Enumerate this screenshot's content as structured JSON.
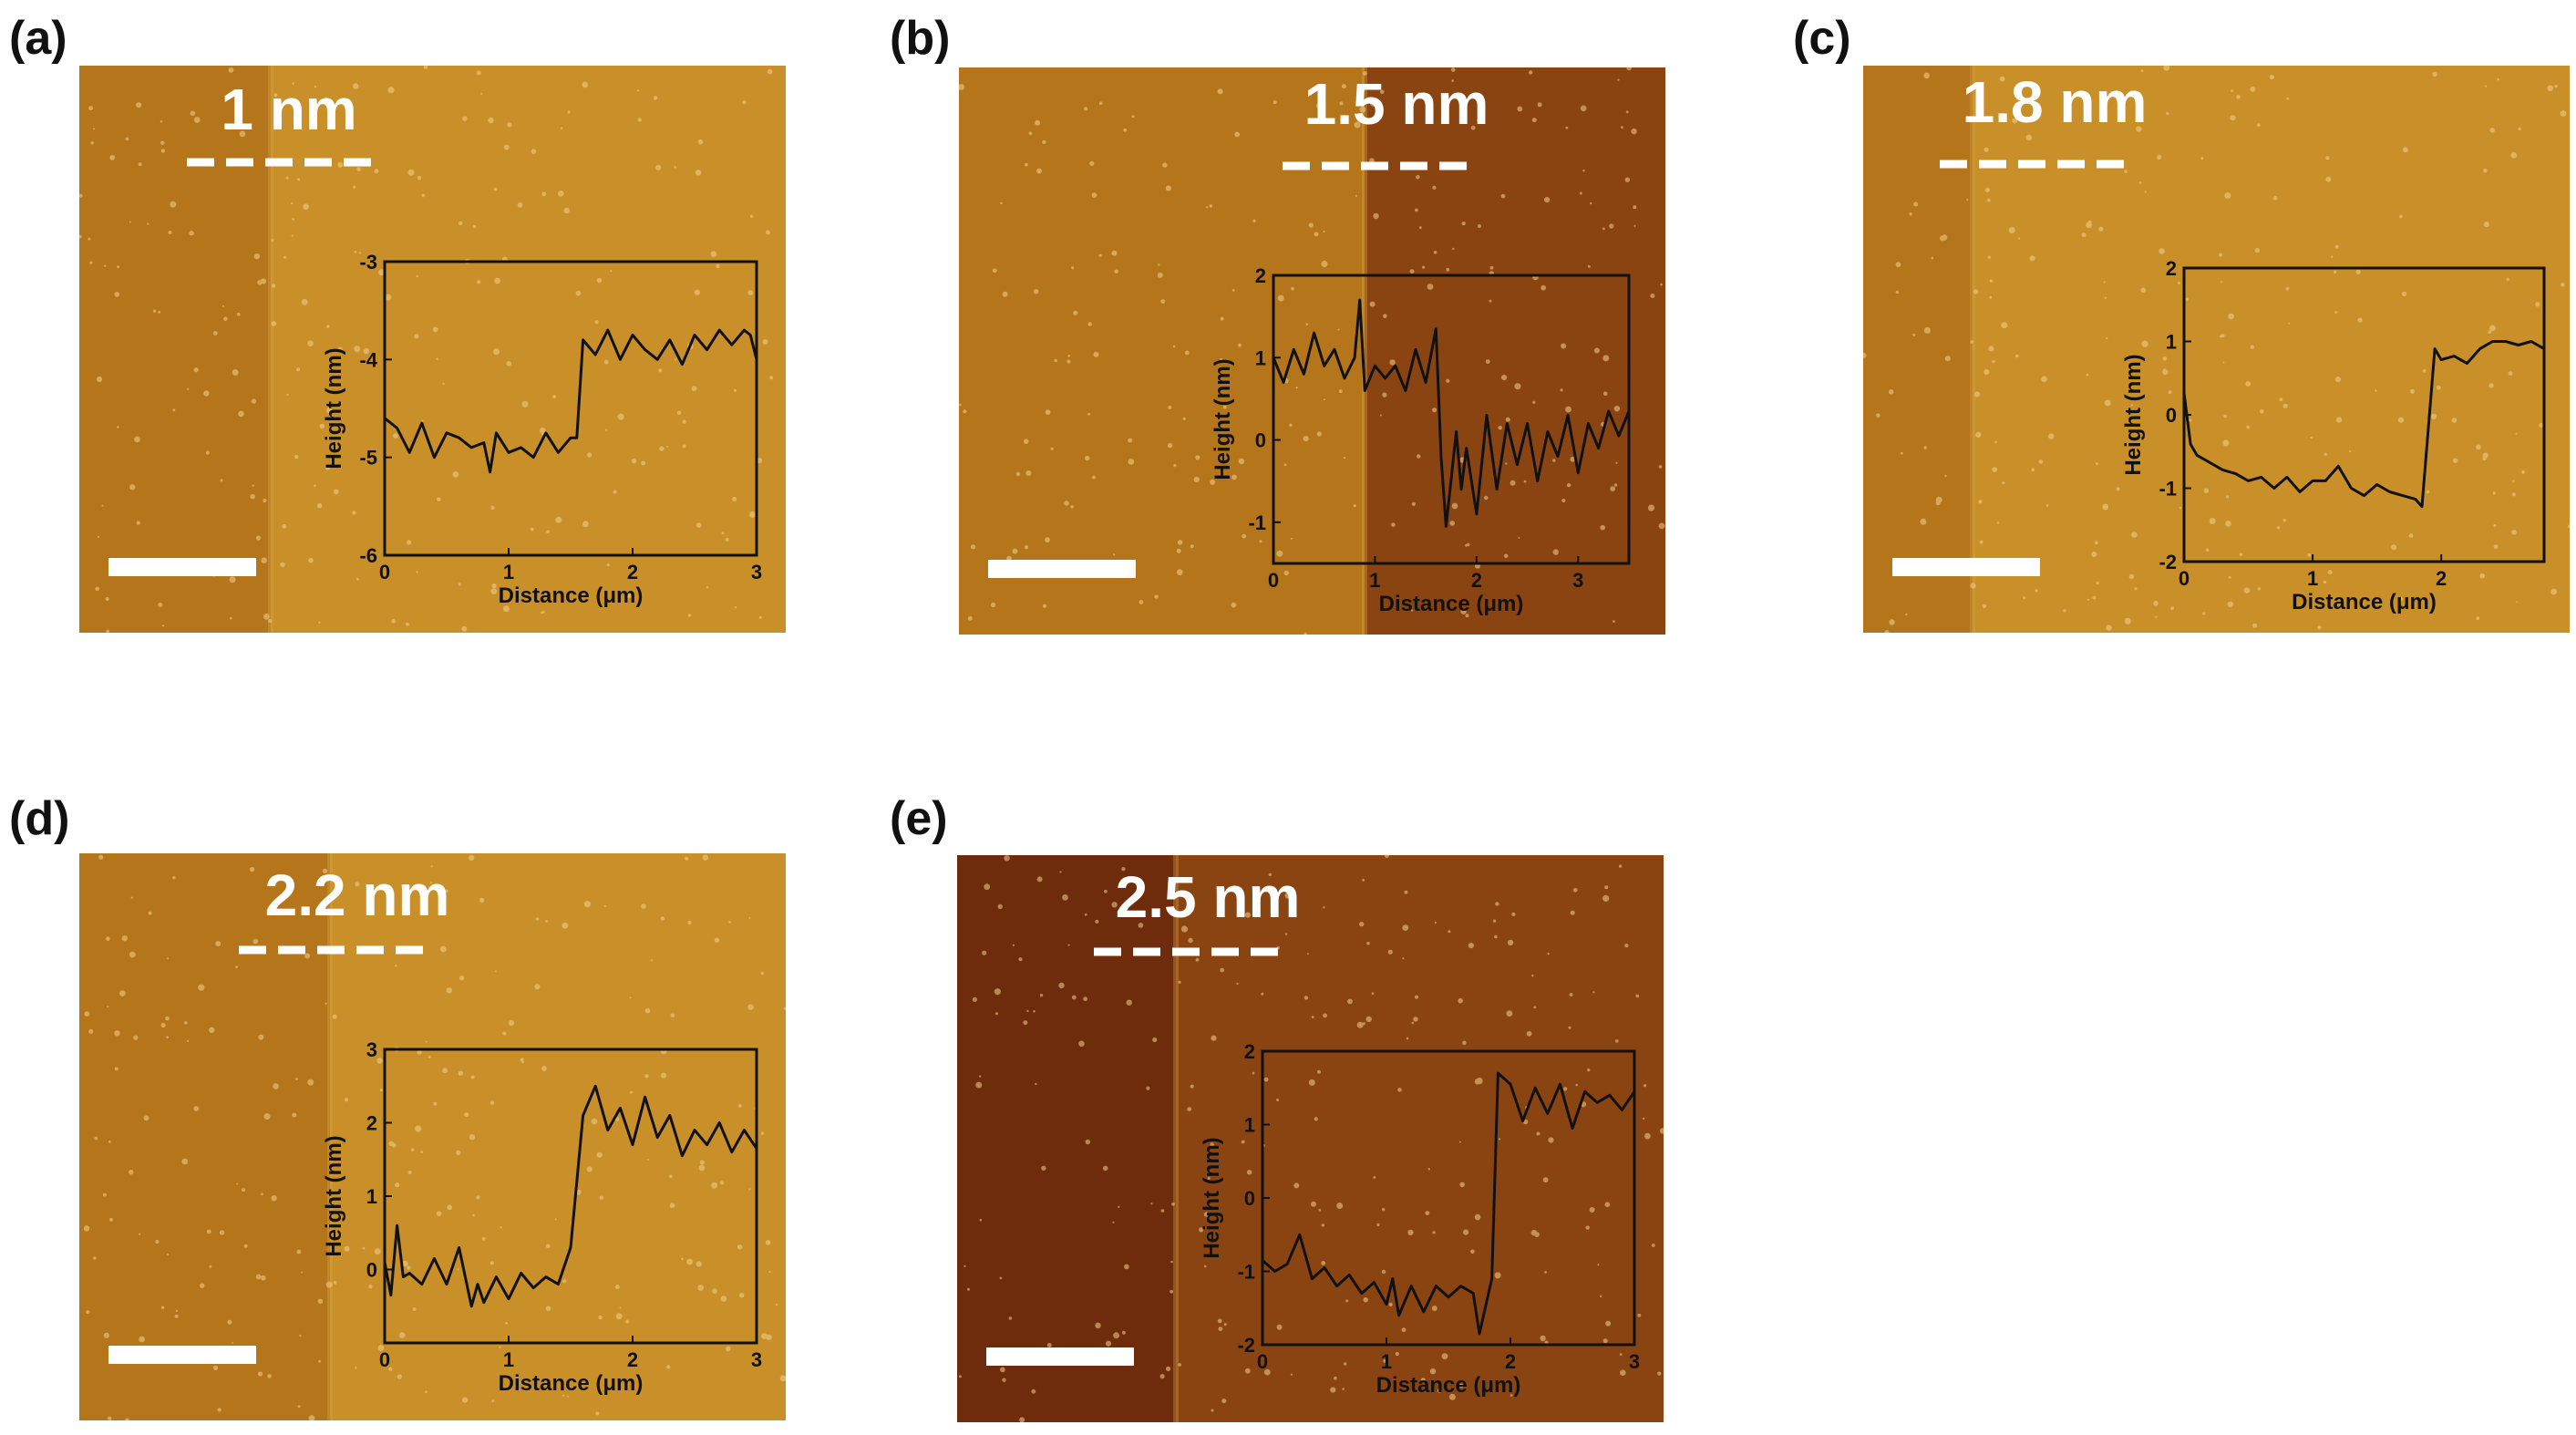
{
  "colors": {
    "afm_light": "#c9902a",
    "afm_mid": "#b4751b",
    "afm_dark": "#8a4412",
    "afm_darkest": "#6e2c0c",
    "annotation": "#ffffff",
    "profile_line": "#111111"
  },
  "inset_axes": {
    "xlabel": "Distance (μm)",
    "ylabel": "Height (nm)"
  },
  "panels": [
    {
      "label": "(a)",
      "step_label": "1 nm",
      "left_shade": "afm_mid",
      "right_shade": "afm_light",
      "chart_data": {
        "type": "line",
        "xlabel": "Distance (μm)",
        "ylabel": "Height (nm)",
        "xlim": [
          0,
          3
        ],
        "ylim": [
          -6,
          -3
        ],
        "xticks": [
          "0",
          "1",
          "2",
          "3"
        ],
        "yticks": [
          "-6",
          "-5",
          "-4",
          "-3"
        ],
        "series": [
          {
            "x": [
              0,
              0.1,
              0.2,
              0.3,
              0.4,
              0.5,
              0.6,
              0.7,
              0.8,
              0.85,
              0.9,
              1.0,
              1.1,
              1.2,
              1.3,
              1.4,
              1.5,
              1.55,
              1.6,
              1.7,
              1.8,
              1.9,
              2.0,
              2.1,
              2.2,
              2.3,
              2.4,
              2.5,
              2.6,
              2.7,
              2.8,
              2.9,
              2.95,
              3.0
            ],
            "y": [
              -4.6,
              -4.7,
              -4.95,
              -4.65,
              -5.0,
              -4.75,
              -4.8,
              -4.9,
              -4.85,
              -5.15,
              -4.75,
              -4.95,
              -4.9,
              -5.0,
              -4.75,
              -4.95,
              -4.8,
              -4.8,
              -3.8,
              -3.95,
              -3.7,
              -4.0,
              -3.75,
              -3.9,
              -4.0,
              -3.8,
              -4.05,
              -3.75,
              -3.9,
              -3.7,
              -3.85,
              -3.7,
              -3.75,
              -4.0
            ]
          }
        ]
      }
    },
    {
      "label": "(b)",
      "step_label": "1.5 nm",
      "left_shade": "afm_mid",
      "right_shade": "afm_dark",
      "chart_data": {
        "type": "line",
        "xlabel": "Distance (μm)",
        "ylabel": "Height (nm)",
        "xlim": [
          0,
          3.5
        ],
        "ylim": [
          -1.5,
          2
        ],
        "xticks": [
          "0",
          "1",
          "2",
          "3"
        ],
        "yticks": [
          "-1",
          "0",
          "1",
          "2"
        ],
        "series": [
          {
            "x": [
              0,
              0.1,
              0.2,
              0.3,
              0.4,
              0.5,
              0.6,
              0.7,
              0.8,
              0.85,
              0.9,
              1.0,
              1.1,
              1.2,
              1.3,
              1.4,
              1.5,
              1.6,
              1.65,
              1.7,
              1.8,
              1.85,
              1.9,
              2.0,
              2.1,
              2.2,
              2.3,
              2.4,
              2.5,
              2.6,
              2.7,
              2.8,
              2.9,
              3.0,
              3.1,
              3.2,
              3.3,
              3.4,
              3.5
            ],
            "y": [
              1.0,
              0.7,
              1.1,
              0.8,
              1.3,
              0.9,
              1.1,
              0.75,
              1.0,
              1.7,
              0.6,
              0.9,
              0.75,
              0.9,
              0.6,
              1.1,
              0.7,
              1.35,
              -0.2,
              -1.05,
              0.1,
              -0.6,
              -0.1,
              -0.9,
              0.3,
              -0.6,
              0.2,
              -0.3,
              0.2,
              -0.5,
              0.1,
              -0.2,
              0.3,
              -0.4,
              0.2,
              -0.1,
              0.35,
              0.05,
              0.35
            ]
          }
        ]
      }
    },
    {
      "label": "(c)",
      "step_label": "1.8 nm",
      "left_shade": "afm_mid",
      "right_shade": "afm_light",
      "chart_data": {
        "type": "line",
        "xlabel": "Distance (μm)",
        "ylabel": "Height (nm)",
        "xlim": [
          0,
          2.8
        ],
        "ylim": [
          -2,
          2
        ],
        "xticks": [
          "0",
          "1",
          "2"
        ],
        "yticks": [
          "-2",
          "-1",
          "0",
          "1",
          "2"
        ],
        "series": [
          {
            "x": [
              0,
              0.05,
              0.1,
              0.2,
              0.3,
              0.4,
              0.5,
              0.6,
              0.7,
              0.8,
              0.9,
              1.0,
              1.1,
              1.2,
              1.3,
              1.4,
              1.5,
              1.6,
              1.7,
              1.8,
              1.85,
              1.95,
              2.0,
              2.1,
              2.2,
              2.3,
              2.4,
              2.5,
              2.6,
              2.7,
              2.8
            ],
            "y": [
              0.3,
              -0.4,
              -0.55,
              -0.65,
              -0.75,
              -0.8,
              -0.9,
              -0.85,
              -1.0,
              -0.85,
              -1.05,
              -0.9,
              -0.9,
              -0.7,
              -1.0,
              -1.1,
              -0.95,
              -1.05,
              -1.1,
              -1.15,
              -1.25,
              0.9,
              0.75,
              0.8,
              0.7,
              0.9,
              1.0,
              1.0,
              0.95,
              1.0,
              0.9
            ]
          }
        ]
      }
    },
    {
      "label": "(d)",
      "step_label": "2.2 nm",
      "left_shade": "afm_mid",
      "right_shade": "afm_light",
      "chart_data": {
        "type": "line",
        "xlabel": "Distance (μm)",
        "ylabel": "Height (nm)",
        "xlim": [
          0,
          3
        ],
        "ylim": [
          -1,
          3
        ],
        "xticks": [
          "0",
          "1",
          "2",
          "3"
        ],
        "yticks": [
          "0",
          "1",
          "2",
          "3"
        ],
        "series": [
          {
            "x": [
              0,
              0.05,
              0.1,
              0.15,
              0.2,
              0.3,
              0.4,
              0.5,
              0.6,
              0.7,
              0.75,
              0.8,
              0.9,
              1.0,
              1.1,
              1.2,
              1.3,
              1.4,
              1.5,
              1.6,
              1.7,
              1.8,
              1.9,
              2.0,
              2.1,
              2.2,
              2.3,
              2.4,
              2.5,
              2.6,
              2.7,
              2.8,
              2.9,
              3.0
            ],
            "y": [
              0.1,
              -0.35,
              0.6,
              -0.1,
              -0.05,
              -0.2,
              0.15,
              -0.2,
              0.3,
              -0.5,
              -0.2,
              -0.45,
              -0.1,
              -0.4,
              -0.05,
              -0.25,
              -0.1,
              -0.2,
              0.3,
              2.1,
              2.5,
              1.9,
              2.2,
              1.7,
              2.35,
              1.8,
              2.1,
              1.55,
              1.9,
              1.7,
              2.0,
              1.6,
              1.9,
              1.65
            ]
          }
        ]
      }
    },
    {
      "label": "(e)",
      "step_label": "2.5 nm",
      "left_shade": "afm_darkest",
      "right_shade": "afm_dark",
      "chart_data": {
        "type": "line",
        "xlabel": "Distance (μm)",
        "ylabel": "Height (nm)",
        "xlim": [
          0,
          3
        ],
        "ylim": [
          -2,
          2
        ],
        "xticks": [
          "0",
          "1",
          "2",
          "3"
        ],
        "yticks": [
          "-2",
          "-1",
          "0",
          "1",
          "2"
        ],
        "series": [
          {
            "x": [
              0,
              0.1,
              0.2,
              0.3,
              0.4,
              0.5,
              0.6,
              0.7,
              0.8,
              0.9,
              1.0,
              1.05,
              1.1,
              1.2,
              1.3,
              1.4,
              1.5,
              1.6,
              1.7,
              1.75,
              1.85,
              1.9,
              2.0,
              2.1,
              2.2,
              2.3,
              2.4,
              2.5,
              2.6,
              2.7,
              2.8,
              2.9,
              3.0
            ],
            "y": [
              -0.85,
              -1.0,
              -0.9,
              -0.5,
              -1.1,
              -0.95,
              -1.2,
              -1.05,
              -1.3,
              -1.15,
              -1.45,
              -1.1,
              -1.6,
              -1.2,
              -1.55,
              -1.2,
              -1.35,
              -1.2,
              -1.3,
              -1.85,
              -1.1,
              1.7,
              1.55,
              1.05,
              1.5,
              1.15,
              1.55,
              0.95,
              1.45,
              1.3,
              1.4,
              1.2,
              1.45
            ]
          }
        ]
      }
    }
  ]
}
